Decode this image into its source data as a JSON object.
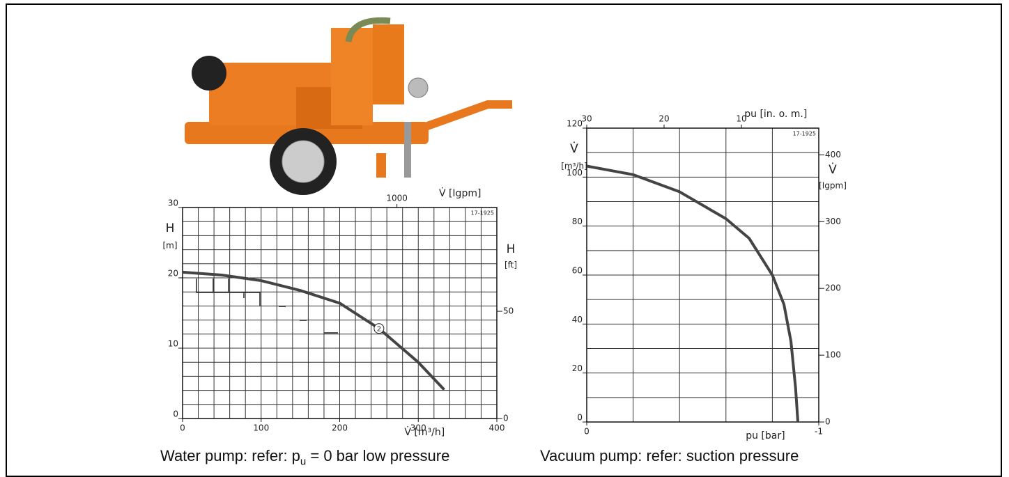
{
  "chart_data": [
    {
      "type": "line",
      "ylabel": "H",
      "yunit": "[m]",
      "y2label": "H",
      "y2unit": "[ft]",
      "xlabel": "V̇ [m³/h]",
      "x2label": "V̇ [Igpm]",
      "note": "17-1925",
      "x": [
        0,
        50,
        100,
        150,
        200,
        250,
        300,
        333
      ],
      "values": [
        20.8,
        20.4,
        19.6,
        18.2,
        16.4,
        12.8,
        8.0,
        4.1
      ],
      "color": "#444444",
      "xlim": [
        0,
        400
      ],
      "xticks": [
        0,
        100,
        200,
        300,
        400
      ],
      "ylim": [
        0,
        30
      ],
      "yticks": [
        0,
        10,
        20,
        30
      ],
      "y2lim": [
        0,
        98.4
      ],
      "y2ticks": [
        0,
        50
      ],
      "x2lim": [
        0,
        1466
      ],
      "x2ticks": [
        1000
      ],
      "grid": {
        "x": 20,
        "y": 2
      },
      "marker": {
        "label": "2",
        "x": 250,
        "y": 12.8
      }
    },
    {
      "type": "line",
      "ylabel": "V̇",
      "yunit": "[m³/h]",
      "y2label": "V̇",
      "y2unit": "[Igpm]",
      "xlabel": "pu [bar]",
      "x2label": "pu [in. o. m.]",
      "note": "17-1925",
      "x": [
        0,
        -0.2,
        -0.4,
        -0.6,
        -0.7,
        -0.8,
        -0.85,
        -0.88,
        -0.9,
        -0.91
      ],
      "values": [
        104.5,
        101,
        94,
        83,
        75,
        60,
        48,
        33,
        14,
        0
      ],
      "color": "#444444",
      "xlim": [
        0,
        -1
      ],
      "xticks": [
        0,
        -1
      ],
      "ylim": [
        0,
        120
      ],
      "yticks": [
        0,
        20,
        40,
        60,
        80,
        100,
        120
      ],
      "y2lim": [
        0,
        440
      ],
      "y2ticks": [
        0,
        100,
        200,
        300,
        400
      ],
      "x2lim": [
        30,
        0
      ],
      "x2ticks": [
        30,
        20,
        10
      ],
      "grid": {
        "x": 0.2,
        "y": 10
      }
    }
  ],
  "captions": {
    "left": {
      "before": "Water pump: refer: p",
      "sub": "u",
      "after": " = 0 bar low pressure"
    },
    "right": "Vacuum pump: refer: suction pressure"
  }
}
